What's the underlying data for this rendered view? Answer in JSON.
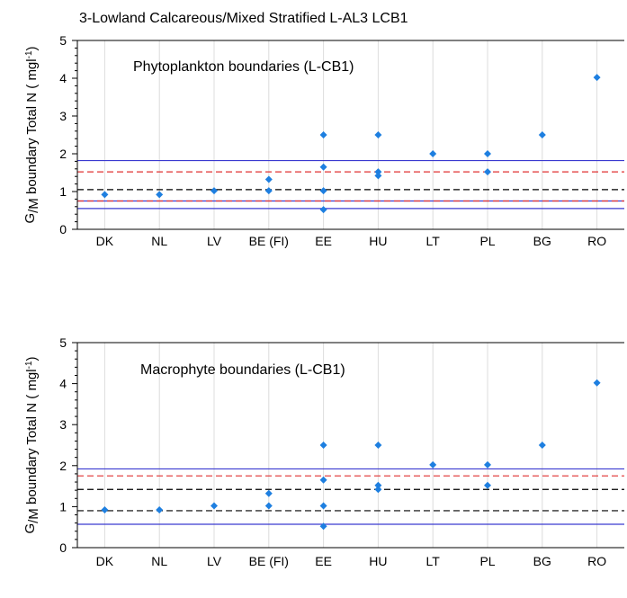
{
  "chart_data": [
    {
      "type": "scatter",
      "title": "3-Lowland Calcareous/Mixed Stratified L-AL3 LCB1",
      "annotation": "Phytoplankton boundaries (L-CB1)",
      "ylabel": "G/M boundary Total N ( mgl⁻¹)",
      "ylabel_parts": {
        "g": "G",
        "slash": "/",
        "m": "M",
        "rest": " boundary Total N ( mgl",
        "sup": "-1",
        "close": ")"
      },
      "categories": [
        "DK",
        "NL",
        "LV",
        "BE (FI)",
        "EE",
        "HU",
        "LT",
        "PL",
        "BG",
        "RO"
      ],
      "yticks": [
        0,
        1,
        2,
        3,
        4,
        5
      ],
      "ylim": [
        0,
        5
      ],
      "grid": "vertical",
      "marker_color": "#1E7FE0",
      "points": [
        {
          "x": "DK",
          "y": 0.92
        },
        {
          "x": "NL",
          "y": 0.92
        },
        {
          "x": "LV",
          "y": 1.02
        },
        {
          "x": "BE (FI)",
          "y": 1.32
        },
        {
          "x": "BE (FI)",
          "y": 1.02
        },
        {
          "x": "EE",
          "y": 2.5
        },
        {
          "x": "EE",
          "y": 1.65
        },
        {
          "x": "EE",
          "y": 1.02
        },
        {
          "x": "EE",
          "y": 0.52
        },
        {
          "x": "HU",
          "y": 2.5
        },
        {
          "x": "HU",
          "y": 1.52
        },
        {
          "x": "HU",
          "y": 1.42
        },
        {
          "x": "LT",
          "y": 2.0
        },
        {
          "x": "PL",
          "y": 2.0
        },
        {
          "x": "PL",
          "y": 1.52
        },
        {
          "x": "BG",
          "y": 2.5
        },
        {
          "x": "RO",
          "y": 4.02
        }
      ],
      "reference_lines": [
        {
          "y": 1.82,
          "style": "solid",
          "color": "#3A3AD0"
        },
        {
          "y": 1.52,
          "style": "dashed",
          "color": "#E03030"
        },
        {
          "y": 1.05,
          "style": "dashed",
          "color": "#000000"
        },
        {
          "y": 0.75,
          "style": "solid",
          "color": "#3A3AD0"
        },
        {
          "y": 0.75,
          "style": "dashed",
          "color": "#E03030"
        },
        {
          "y": 0.55,
          "style": "solid",
          "color": "#3A3AD0"
        }
      ]
    },
    {
      "type": "scatter",
      "title": "",
      "annotation": "Macrophyte boundaries (L-CB1)",
      "ylabel": "G/M boundary Total N ( mgl⁻¹)",
      "ylabel_parts": {
        "g": "G",
        "slash": "/",
        "m": "M",
        "rest": " boundary Total N ( mgl",
        "sup": "-1",
        "close": ")"
      },
      "categories": [
        "DK",
        "NL",
        "LV",
        "BE (FI)",
        "EE",
        "HU",
        "LT",
        "PL",
        "BG",
        "RO"
      ],
      "yticks": [
        0,
        1,
        2,
        3,
        4,
        5
      ],
      "ylim": [
        0,
        5
      ],
      "grid": "vertical",
      "marker_color": "#1E7FE0",
      "points": [
        {
          "x": "DK",
          "y": 0.92
        },
        {
          "x": "NL",
          "y": 0.92
        },
        {
          "x": "LV",
          "y": 1.02
        },
        {
          "x": "BE (FI)",
          "y": 1.32
        },
        {
          "x": "BE (FI)",
          "y": 1.02
        },
        {
          "x": "EE",
          "y": 2.5
        },
        {
          "x": "EE",
          "y": 1.65
        },
        {
          "x": "EE",
          "y": 1.02
        },
        {
          "x": "EE",
          "y": 0.52
        },
        {
          "x": "HU",
          "y": 2.5
        },
        {
          "x": "HU",
          "y": 1.52
        },
        {
          "x": "HU",
          "y": 1.42
        },
        {
          "x": "LT",
          "y": 2.02
        },
        {
          "x": "PL",
          "y": 2.02
        },
        {
          "x": "PL",
          "y": 1.52
        },
        {
          "x": "BG",
          "y": 2.5
        },
        {
          "x": "RO",
          "y": 4.02
        }
      ],
      "reference_lines": [
        {
          "y": 1.92,
          "style": "solid",
          "color": "#3A3AD0"
        },
        {
          "y": 1.75,
          "style": "dashed",
          "color": "#E03030"
        },
        {
          "y": 1.42,
          "style": "dashed",
          "color": "#000000"
        },
        {
          "y": 0.9,
          "style": "dashed",
          "color": "#000000"
        },
        {
          "y": 0.57,
          "style": "solid",
          "color": "#3A3AD0"
        }
      ]
    }
  ]
}
